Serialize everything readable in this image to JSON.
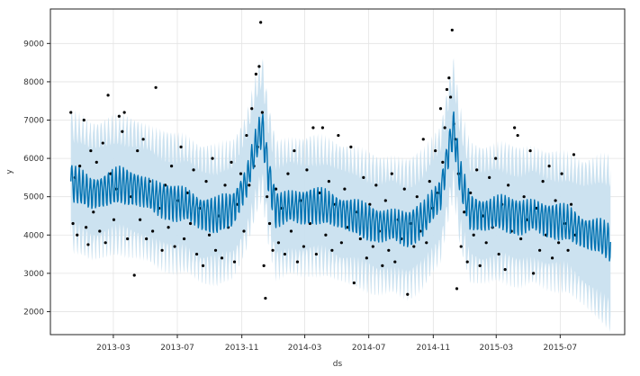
{
  "chart_data": {
    "type": "line",
    "xlabel": "ds",
    "ylabel": "y",
    "xlim": [
      "2012-11-01",
      "2015-11-01"
    ],
    "ylim": [
      1400,
      9900
    ],
    "grid": true,
    "x_ticks": [
      "2013-03",
      "2013-07",
      "2013-11",
      "2014-03",
      "2014-07",
      "2014-11",
      "2015-03",
      "2015-07"
    ],
    "y_ticks": [
      2000,
      3000,
      4000,
      5000,
      6000,
      7000,
      8000,
      9000
    ],
    "colors": {
      "forecast_line": "#0072B2",
      "uncertainty_band": "#c9e0ef",
      "observed_points": "#000000",
      "grid": "#e3e3e3"
    },
    "forecast_trend": [
      {
        "date": "2012-12-10",
        "yhat": 5400,
        "lower": 4000,
        "upper": 6900
      },
      {
        "date": "2013-01-15",
        "yhat": 5100,
        "lower": 3700,
        "upper": 6600
      },
      {
        "date": "2013-02-15",
        "yhat": 5200,
        "lower": 3800,
        "upper": 6700
      },
      {
        "date": "2013-03-15",
        "yhat": 5300,
        "lower": 3850,
        "upper": 6750
      },
      {
        "date": "2013-04-15",
        "yhat": 5250,
        "lower": 3800,
        "upper": 6700
      },
      {
        "date": "2013-05-15",
        "yhat": 5000,
        "lower": 3550,
        "upper": 6450
      },
      {
        "date": "2013-06-15",
        "yhat": 4900,
        "lower": 3450,
        "upper": 6350
      },
      {
        "date": "2013-07-15",
        "yhat": 4800,
        "lower": 3350,
        "upper": 6250
      },
      {
        "date": "2013-08-15",
        "yhat": 4600,
        "lower": 3150,
        "upper": 6050
      },
      {
        "date": "2013-09-15",
        "yhat": 4500,
        "lower": 3050,
        "upper": 5950
      },
      {
        "date": "2013-10-15",
        "yhat": 4700,
        "lower": 3250,
        "upper": 6150
      },
      {
        "date": "2013-11-10",
        "yhat": 5400,
        "lower": 3950,
        "upper": 6850
      },
      {
        "date": "2013-12-01",
        "yhat": 6500,
        "lower": 5000,
        "upper": 8000
      },
      {
        "date": "2013-12-10",
        "yhat": 6800,
        "lower": 5300,
        "upper": 8300
      },
      {
        "date": "2013-12-22",
        "yhat": 5600,
        "lower": 4150,
        "upper": 7050
      },
      {
        "date": "2014-01-05",
        "yhat": 4700,
        "lower": 3250,
        "upper": 6150
      },
      {
        "date": "2014-02-15",
        "yhat": 4750,
        "lower": 3300,
        "upper": 6200
      },
      {
        "date": "2014-03-15",
        "yhat": 4800,
        "lower": 3350,
        "upper": 6250
      },
      {
        "date": "2014-04-15",
        "yhat": 4700,
        "lower": 3250,
        "upper": 6150
      },
      {
        "date": "2014-05-15",
        "yhat": 4600,
        "lower": 3150,
        "upper": 6050
      },
      {
        "date": "2014-06-15",
        "yhat": 4400,
        "lower": 2950,
        "upper": 5850
      },
      {
        "date": "2014-07-15",
        "yhat": 4300,
        "lower": 2850,
        "upper": 5750
      },
      {
        "date": "2014-08-15",
        "yhat": 4250,
        "lower": 2800,
        "upper": 5700
      },
      {
        "date": "2014-09-15",
        "yhat": 4200,
        "lower": 2750,
        "upper": 5650
      },
      {
        "date": "2014-10-15",
        "yhat": 4450,
        "lower": 3000,
        "upper": 5900
      },
      {
        "date": "2014-11-15",
        "yhat": 5100,
        "lower": 3650,
        "upper": 6550
      },
      {
        "date": "2014-12-01",
        "yhat": 6300,
        "lower": 4850,
        "upper": 7750
      },
      {
        "date": "2014-12-10",
        "yhat": 6800,
        "lower": 5350,
        "upper": 8250
      },
      {
        "date": "2014-12-22",
        "yhat": 5500,
        "lower": 4050,
        "upper": 6950
      },
      {
        "date": "2015-01-10",
        "yhat": 4600,
        "lower": 3150,
        "upper": 6050
      },
      {
        "date": "2015-02-15",
        "yhat": 4550,
        "lower": 3100,
        "upper": 6000
      },
      {
        "date": "2015-03-15",
        "yhat": 4600,
        "lower": 3150,
        "upper": 6050
      },
      {
        "date": "2015-04-15",
        "yhat": 4500,
        "lower": 3050,
        "upper": 5950
      },
      {
        "date": "2015-05-15",
        "yhat": 4500,
        "lower": 3050,
        "upper": 5950
      },
      {
        "date": "2015-06-15",
        "yhat": 4400,
        "lower": 2950,
        "upper": 5850
      },
      {
        "date": "2015-07-15",
        "yhat": 4300,
        "lower": 2850,
        "upper": 5750
      },
      {
        "date": "2015-08-15",
        "yhat": 4100,
        "lower": 2550,
        "upper": 5650
      },
      {
        "date": "2015-09-15",
        "yhat": 3950,
        "lower": 2100,
        "upper": 5700
      },
      {
        "date": "2015-10-05",
        "yhat": 3800,
        "lower": 1900,
        "upper": 5700
      }
    ],
    "weekly_pattern": [
      0,
      250,
      400,
      250,
      -100,
      -400,
      -400
    ],
    "observed_end": "2015-07-31",
    "observed_points": [
      [
        "2012-12-10",
        7200
      ],
      [
        "2012-12-14",
        4300
      ],
      [
        "2012-12-18",
        5500
      ],
      [
        "2012-12-22",
        4000
      ],
      [
        "2012-12-27",
        5800
      ],
      [
        "2013-01-04",
        7000
      ],
      [
        "2013-01-08",
        4200
      ],
      [
        "2013-01-12",
        3750
      ],
      [
        "2013-01-17",
        6200
      ],
      [
        "2013-01-22",
        4600
      ],
      [
        "2013-01-28",
        5900
      ],
      [
        "2013-02-03",
        4100
      ],
      [
        "2013-02-09",
        6400
      ],
      [
        "2013-02-14",
        3800
      ],
      [
        "2013-02-19",
        7650
      ],
      [
        "2013-02-24",
        5600
      ],
      [
        "2013-03-02",
        4400
      ],
      [
        "2013-03-07",
        5200
      ],
      [
        "2013-03-12",
        7100
      ],
      [
        "2013-03-18",
        6700
      ],
      [
        "2013-03-22",
        7200
      ],
      [
        "2013-03-28",
        3900
      ],
      [
        "2013-04-04",
        5000
      ],
      [
        "2013-04-10",
        2950
      ],
      [
        "2013-04-16",
        6200
      ],
      [
        "2013-04-21",
        4400
      ],
      [
        "2013-04-27",
        6500
      ],
      [
        "2013-05-03",
        3900
      ],
      [
        "2013-05-09",
        5400
      ],
      [
        "2013-05-15",
        4100
      ],
      [
        "2013-05-21",
        7850
      ],
      [
        "2013-05-27",
        4700
      ],
      [
        "2013-06-02",
        3600
      ],
      [
        "2013-06-08",
        5300
      ],
      [
        "2013-06-14",
        4200
      ],
      [
        "2013-06-20",
        5800
      ],
      [
        "2013-06-26",
        3700
      ],
      [
        "2013-07-02",
        4900
      ],
      [
        "2013-07-08",
        6300
      ],
      [
        "2013-07-14",
        3900
      ],
      [
        "2013-07-20",
        5100
      ],
      [
        "2013-07-26",
        4300
      ],
      [
        "2013-08-01",
        5700
      ],
      [
        "2013-08-07",
        3500
      ],
      [
        "2013-08-13",
        4700
      ],
      [
        "2013-08-19",
        3200
      ],
      [
        "2013-08-25",
        5400
      ],
      [
        "2013-08-31",
        4000
      ],
      [
        "2013-09-06",
        6000
      ],
      [
        "2013-09-12",
        3600
      ],
      [
        "2013-09-18",
        4500
      ],
      [
        "2013-09-24",
        3400
      ],
      [
        "2013-09-30",
        5300
      ],
      [
        "2013-10-06",
        4200
      ],
      [
        "2013-10-12",
        5900
      ],
      [
        "2013-10-18",
        3300
      ],
      [
        "2013-10-24",
        4800
      ],
      [
        "2013-10-30",
        5600
      ],
      [
        "2013-11-05",
        4100
      ],
      [
        "2013-11-10",
        6600
      ],
      [
        "2013-11-15",
        5300
      ],
      [
        "2013-11-20",
        7300
      ],
      [
        "2013-11-24",
        5800
      ],
      [
        "2013-11-28",
        8200
      ],
      [
        "2013-12-01",
        6300
      ],
      [
        "2013-12-04",
        8400
      ],
      [
        "2013-12-07",
        9550
      ],
      [
        "2013-12-10",
        7200
      ],
      [
        "2013-12-13",
        3200
      ],
      [
        "2013-12-16",
        2350
      ],
      [
        "2013-12-19",
        5000
      ],
      [
        "2013-12-24",
        4300
      ],
      [
        "2013-12-30",
        3600
      ],
      [
        "2014-01-05",
        5200
      ],
      [
        "2014-01-10",
        3800
      ],
      [
        "2014-01-16",
        4700
      ],
      [
        "2014-01-22",
        3500
      ],
      [
        "2014-01-28",
        5600
      ],
      [
        "2014-02-03",
        4100
      ],
      [
        "2014-02-09",
        6200
      ],
      [
        "2014-02-15",
        3300
      ],
      [
        "2014-02-21",
        4900
      ],
      [
        "2014-02-27",
        3700
      ],
      [
        "2014-03-05",
        5700
      ],
      [
        "2014-03-11",
        4300
      ],
      [
        "2014-03-17",
        6800
      ],
      [
        "2014-03-23",
        3500
      ],
      [
        "2014-03-29",
        5100
      ],
      [
        "2014-04-04",
        6800
      ],
      [
        "2014-04-10",
        4000
      ],
      [
        "2014-04-16",
        5400
      ],
      [
        "2014-04-22",
        3600
      ],
      [
        "2014-04-28",
        4800
      ],
      [
        "2014-05-04",
        6600
      ],
      [
        "2014-05-10",
        3800
      ],
      [
        "2014-05-16",
        5200
      ],
      [
        "2014-05-22",
        4200
      ],
      [
        "2014-05-28",
        6300
      ],
      [
        "2014-06-03",
        2750
      ],
      [
        "2014-06-09",
        4600
      ],
      [
        "2014-06-15",
        3900
      ],
      [
        "2014-06-21",
        5500
      ],
      [
        "2014-06-27",
        3400
      ],
      [
        "2014-07-03",
        4800
      ],
      [
        "2014-07-09",
        3700
      ],
      [
        "2014-07-15",
        5300
      ],
      [
        "2014-07-21",
        4100
      ],
      [
        "2014-07-27",
        3200
      ],
      [
        "2014-08-02",
        4900
      ],
      [
        "2014-08-08",
        3600
      ],
      [
        "2014-08-14",
        5600
      ],
      [
        "2014-08-20",
        3300
      ],
      [
        "2014-08-26",
        4400
      ],
      [
        "2014-09-01",
        3900
      ],
      [
        "2014-09-07",
        5200
      ],
      [
        "2014-09-13",
        2450
      ],
      [
        "2014-09-19",
        4300
      ],
      [
        "2014-09-25",
        3700
      ],
      [
        "2014-10-01",
        5000
      ],
      [
        "2014-10-07",
        4100
      ],
      [
        "2014-10-13",
        6500
      ],
      [
        "2014-10-19",
        3800
      ],
      [
        "2014-10-25",
        5400
      ],
      [
        "2014-10-31",
        4700
      ],
      [
        "2014-11-05",
        6200
      ],
      [
        "2014-11-10",
        5100
      ],
      [
        "2014-11-15",
        7300
      ],
      [
        "2014-11-19",
        5900
      ],
      [
        "2014-11-23",
        6800
      ],
      [
        "2014-11-27",
        7800
      ],
      [
        "2014-12-01",
        8100
      ],
      [
        "2014-12-04",
        7600
      ],
      [
        "2014-12-07",
        9350
      ],
      [
        "2014-12-10",
        6900
      ],
      [
        "2014-12-13",
        6500
      ],
      [
        "2014-12-16",
        2600
      ],
      [
        "2014-12-19",
        5600
      ],
      [
        "2014-12-24",
        3700
      ],
      [
        "2014-12-30",
        4600
      ],
      [
        "2015-01-05",
        3300
      ],
      [
        "2015-01-11",
        5100
      ],
      [
        "2015-01-17",
        4000
      ],
      [
        "2015-01-23",
        5700
      ],
      [
        "2015-01-29",
        3200
      ],
      [
        "2015-02-04",
        4500
      ],
      [
        "2015-02-10",
        3800
      ],
      [
        "2015-02-16",
        5500
      ],
      [
        "2015-02-22",
        4200
      ],
      [
        "2015-02-28",
        6000
      ],
      [
        "2015-03-06",
        3500
      ],
      [
        "2015-03-12",
        4800
      ],
      [
        "2015-03-18",
        3100
      ],
      [
        "2015-03-24",
        5300
      ],
      [
        "2015-03-30",
        4100
      ],
      [
        "2015-04-05",
        6800
      ],
      [
        "2015-04-11",
        6600
      ],
      [
        "2015-04-17",
        3900
      ],
      [
        "2015-04-23",
        5000
      ],
      [
        "2015-04-29",
        4400
      ],
      [
        "2015-05-05",
        6200
      ],
      [
        "2015-05-11",
        3000
      ],
      [
        "2015-05-17",
        4700
      ],
      [
        "2015-05-23",
        3600
      ],
      [
        "2015-05-29",
        5400
      ],
      [
        "2015-06-04",
        4000
      ],
      [
        "2015-06-10",
        5800
      ],
      [
        "2015-06-16",
        3400
      ],
      [
        "2015-06-22",
        4900
      ],
      [
        "2015-06-28",
        3800
      ],
      [
        "2015-07-04",
        5600
      ],
      [
        "2015-07-10",
        4300
      ],
      [
        "2015-07-16",
        3600
      ],
      [
        "2015-07-22",
        4800
      ],
      [
        "2015-07-27",
        6100
      ],
      [
        "2015-07-30",
        4000
      ]
    ]
  }
}
